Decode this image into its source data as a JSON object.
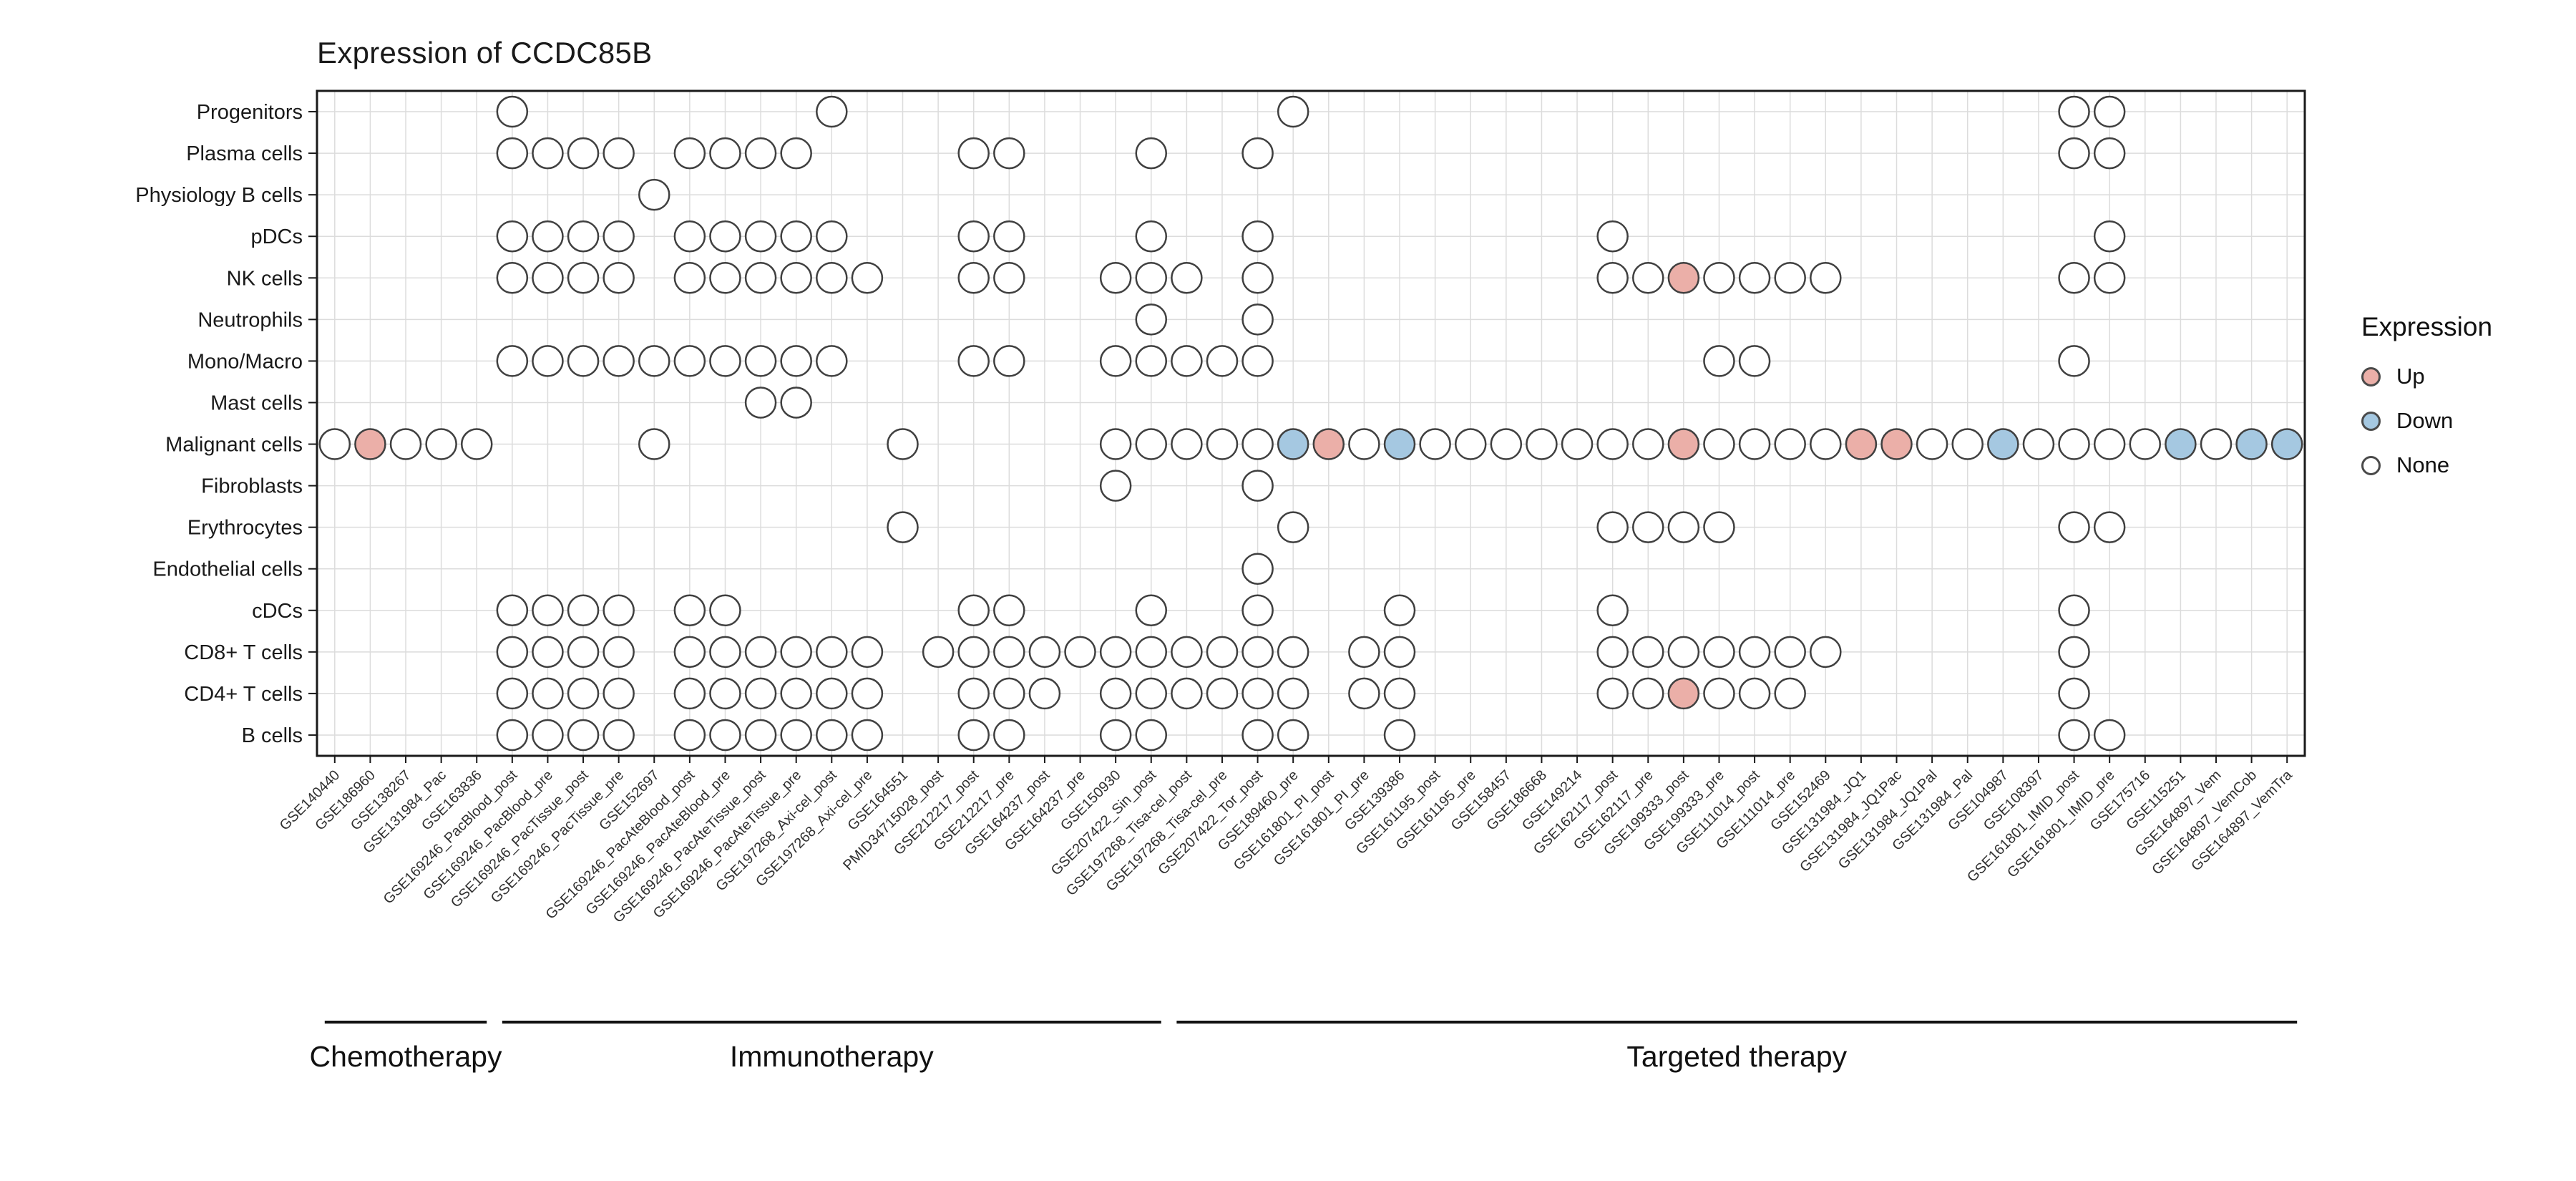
{
  "title": "Expression of CCDC85B",
  "legend": {
    "title": "Expression",
    "items": [
      {
        "label": "Up",
        "color": "#EBAFA8"
      },
      {
        "label": "Down",
        "color": "#A5C8E1"
      },
      {
        "label": "None",
        "color": "#FFFFFF"
      }
    ]
  },
  "chart_data": {
    "type": "heatmap",
    "subtype": "dot-matrix",
    "title": "Expression of CCDC85B",
    "legend_title": "Expression",
    "legend_position": "right",
    "grid": true,
    "rows": [
      "Progenitors",
      "Plasma cells",
      "Physiology B cells",
      "pDCs",
      "NK cells",
      "Neutrophils",
      "Mono/Macro",
      "Mast cells",
      "Malignant cells",
      "Fibroblasts",
      "Erythrocytes",
      "Endothelial cells",
      "cDCs",
      "CD8+ T cells",
      "CD4+ T cells",
      "B cells"
    ],
    "columns": [
      "GSE140440",
      "GSE186960",
      "GSE138267",
      "GSE131984_Pac",
      "GSE163836",
      "GSE169246_PacBlood_post",
      "GSE169246_PacBlood_pre",
      "GSE169246_PacTissue_post",
      "GSE169246_PacTissue_pre",
      "GSE152697",
      "GSE169246_PacAteBlood_post",
      "GSE169246_PacAteBlood_pre",
      "GSE169246_PacAteTissue_post",
      "GSE169246_PacAteTissue_pre",
      "GSE197268_Axi-cel_post",
      "GSE197268_Axi-cel_pre",
      "GSE164551",
      "PMID34715028_post",
      "GSE212217_post",
      "GSE212217_pre",
      "GSE164237_post",
      "GSE164237_pre",
      "GSE150930",
      "GSE207422_Sin_post",
      "GSE197268_Tisa-cel_post",
      "GSE197268_Tisa-cel_pre",
      "GSE207422_Tor_post",
      "GSE189460_pre",
      "GSE161801_PI_post",
      "GSE161801_PI_pre",
      "GSE139386",
      "GSE161195_post",
      "GSE161195_pre",
      "GSE158457",
      "GSE186668",
      "GSE149214",
      "GSE162117_post",
      "GSE162117_pre",
      "GSE199333_post",
      "GSE199333_pre",
      "GSE111014_post",
      "GSE111014_pre",
      "GSE152469",
      "GSE131984_JQ1",
      "GSE131984_JQ1Pac",
      "GSE131984_JQ1Pal",
      "GSE131984_Pal",
      "GSE104987",
      "GSE108397",
      "GSE161801_IMID_post",
      "GSE161801_IMID_pre",
      "GSE175716",
      "GSE115251",
      "GSE164897_Vem",
      "GSE164897_VemCob",
      "GSE164897_VemTra"
    ],
    "groups": [
      {
        "label": "Chemotherapy",
        "start": 1,
        "end": 5
      },
      {
        "label": "Immunotherapy",
        "start": 6,
        "end": 24
      },
      {
        "label": "Targeted therapy",
        "start": 25,
        "end": 56
      }
    ],
    "states": {
      "n": "None",
      "u": "Up",
      "d": "Down"
    },
    "state_colors": {
      "n": "#FFFFFF",
      "u": "#EBAFA8",
      "d": "#A5C8E1"
    },
    "style": {
      "grid": "#DCDCDC",
      "border": "#1A1A1A",
      "dot_stroke": "#404040",
      "text": "#1A1A1A",
      "tick_text": "#303030"
    },
    "dots": {
      "Progenitors": [
        [
          6,
          "n"
        ],
        [
          15,
          "n"
        ],
        [
          28,
          "n"
        ],
        [
          50,
          "n"
        ],
        [
          51,
          "n"
        ]
      ],
      "Plasma cells": [
        [
          6,
          "n"
        ],
        [
          7,
          "n"
        ],
        [
          8,
          "n"
        ],
        [
          9,
          "n"
        ],
        [
          11,
          "n"
        ],
        [
          12,
          "n"
        ],
        [
          13,
          "n"
        ],
        [
          14,
          "n"
        ],
        [
          19,
          "n"
        ],
        [
          20,
          "n"
        ],
        [
          24,
          "n"
        ],
        [
          27,
          "n"
        ],
        [
          50,
          "n"
        ],
        [
          51,
          "n"
        ]
      ],
      "Physiology B cells": [
        [
          10,
          "n"
        ]
      ],
      "pDCs": [
        [
          6,
          "n"
        ],
        [
          7,
          "n"
        ],
        [
          8,
          "n"
        ],
        [
          9,
          "n"
        ],
        [
          11,
          "n"
        ],
        [
          12,
          "n"
        ],
        [
          13,
          "n"
        ],
        [
          14,
          "n"
        ],
        [
          15,
          "n"
        ],
        [
          19,
          "n"
        ],
        [
          20,
          "n"
        ],
        [
          24,
          "n"
        ],
        [
          27,
          "n"
        ],
        [
          37,
          "n"
        ],
        [
          51,
          "n"
        ]
      ],
      "NK cells": [
        [
          6,
          "n"
        ],
        [
          7,
          "n"
        ],
        [
          8,
          "n"
        ],
        [
          9,
          "n"
        ],
        [
          11,
          "n"
        ],
        [
          12,
          "n"
        ],
        [
          13,
          "n"
        ],
        [
          14,
          "n"
        ],
        [
          15,
          "n"
        ],
        [
          16,
          "n"
        ],
        [
          19,
          "n"
        ],
        [
          20,
          "n"
        ],
        [
          23,
          "n"
        ],
        [
          24,
          "n"
        ],
        [
          25,
          "n"
        ],
        [
          27,
          "n"
        ],
        [
          37,
          "n"
        ],
        [
          38,
          "n"
        ],
        [
          39,
          "u"
        ],
        [
          40,
          "n"
        ],
        [
          41,
          "n"
        ],
        [
          42,
          "n"
        ],
        [
          43,
          "n"
        ],
        [
          50,
          "n"
        ],
        [
          51,
          "n"
        ]
      ],
      "Neutrophils": [
        [
          24,
          "n"
        ],
        [
          27,
          "n"
        ]
      ],
      "Mono/Macro": [
        [
          6,
          "n"
        ],
        [
          7,
          "n"
        ],
        [
          8,
          "n"
        ],
        [
          9,
          "n"
        ],
        [
          10,
          "n"
        ],
        [
          11,
          "n"
        ],
        [
          12,
          "n"
        ],
        [
          13,
          "n"
        ],
        [
          14,
          "n"
        ],
        [
          15,
          "n"
        ],
        [
          19,
          "n"
        ],
        [
          20,
          "n"
        ],
        [
          23,
          "n"
        ],
        [
          24,
          "n"
        ],
        [
          25,
          "n"
        ],
        [
          26,
          "n"
        ],
        [
          27,
          "n"
        ],
        [
          40,
          "n"
        ],
        [
          41,
          "n"
        ],
        [
          50,
          "n"
        ]
      ],
      "Mast cells": [
        [
          13,
          "n"
        ],
        [
          14,
          "n"
        ]
      ],
      "Malignant cells": [
        [
          1,
          "n"
        ],
        [
          2,
          "u"
        ],
        [
          3,
          "n"
        ],
        [
          4,
          "n"
        ],
        [
          5,
          "n"
        ],
        [
          10,
          "n"
        ],
        [
          17,
          "n"
        ],
        [
          23,
          "n"
        ],
        [
          24,
          "n"
        ],
        [
          25,
          "n"
        ],
        [
          26,
          "n"
        ],
        [
          27,
          "n"
        ],
        [
          28,
          "d"
        ],
        [
          29,
          "u"
        ],
        [
          30,
          "n"
        ],
        [
          31,
          "d"
        ],
        [
          32,
          "n"
        ],
        [
          33,
          "n"
        ],
        [
          34,
          "n"
        ],
        [
          35,
          "n"
        ],
        [
          36,
          "n"
        ],
        [
          37,
          "n"
        ],
        [
          38,
          "n"
        ],
        [
          39,
          "u"
        ],
        [
          40,
          "n"
        ],
        [
          41,
          "n"
        ],
        [
          42,
          "n"
        ],
        [
          43,
          "n"
        ],
        [
          44,
          "u"
        ],
        [
          45,
          "u"
        ],
        [
          46,
          "n"
        ],
        [
          47,
          "n"
        ],
        [
          48,
          "d"
        ],
        [
          49,
          "n"
        ],
        [
          50,
          "n"
        ],
        [
          51,
          "n"
        ],
        [
          52,
          "n"
        ],
        [
          53,
          "d"
        ],
        [
          54,
          "n"
        ],
        [
          55,
          "d"
        ],
        [
          56,
          "d"
        ]
      ],
      "Fibroblasts": [
        [
          23,
          "n"
        ],
        [
          27,
          "n"
        ]
      ],
      "Erythrocytes": [
        [
          17,
          "n"
        ],
        [
          28,
          "n"
        ],
        [
          37,
          "n"
        ],
        [
          38,
          "n"
        ],
        [
          39,
          "n"
        ],
        [
          40,
          "n"
        ],
        [
          50,
          "n"
        ],
        [
          51,
          "n"
        ]
      ],
      "Endothelial cells": [
        [
          27,
          "n"
        ]
      ],
      "cDCs": [
        [
          6,
          "n"
        ],
        [
          7,
          "n"
        ],
        [
          8,
          "n"
        ],
        [
          9,
          "n"
        ],
        [
          11,
          "n"
        ],
        [
          12,
          "n"
        ],
        [
          19,
          "n"
        ],
        [
          20,
          "n"
        ],
        [
          24,
          "n"
        ],
        [
          27,
          "n"
        ],
        [
          31,
          "n"
        ],
        [
          37,
          "n"
        ],
        [
          50,
          "n"
        ]
      ],
      "CD8+ T cells": [
        [
          6,
          "n"
        ],
        [
          7,
          "n"
        ],
        [
          8,
          "n"
        ],
        [
          9,
          "n"
        ],
        [
          11,
          "n"
        ],
        [
          12,
          "n"
        ],
        [
          13,
          "n"
        ],
        [
          14,
          "n"
        ],
        [
          15,
          "n"
        ],
        [
          16,
          "n"
        ],
        [
          18,
          "n"
        ],
        [
          19,
          "n"
        ],
        [
          20,
          "n"
        ],
        [
          21,
          "n"
        ],
        [
          22,
          "n"
        ],
        [
          23,
          "n"
        ],
        [
          24,
          "n"
        ],
        [
          25,
          "n"
        ],
        [
          26,
          "n"
        ],
        [
          27,
          "n"
        ],
        [
          28,
          "n"
        ],
        [
          30,
          "n"
        ],
        [
          31,
          "n"
        ],
        [
          37,
          "n"
        ],
        [
          38,
          "n"
        ],
        [
          39,
          "n"
        ],
        [
          40,
          "n"
        ],
        [
          41,
          "n"
        ],
        [
          42,
          "n"
        ],
        [
          43,
          "n"
        ],
        [
          50,
          "n"
        ]
      ],
      "CD4+ T cells": [
        [
          6,
          "n"
        ],
        [
          7,
          "n"
        ],
        [
          8,
          "n"
        ],
        [
          9,
          "n"
        ],
        [
          11,
          "n"
        ],
        [
          12,
          "n"
        ],
        [
          13,
          "n"
        ],
        [
          14,
          "n"
        ],
        [
          15,
          "n"
        ],
        [
          16,
          "n"
        ],
        [
          19,
          "n"
        ],
        [
          20,
          "n"
        ],
        [
          21,
          "n"
        ],
        [
          23,
          "n"
        ],
        [
          24,
          "n"
        ],
        [
          25,
          "n"
        ],
        [
          26,
          "n"
        ],
        [
          27,
          "n"
        ],
        [
          28,
          "n"
        ],
        [
          30,
          "n"
        ],
        [
          31,
          "n"
        ],
        [
          37,
          "n"
        ],
        [
          38,
          "n"
        ],
        [
          39,
          "u"
        ],
        [
          40,
          "n"
        ],
        [
          41,
          "n"
        ],
        [
          42,
          "n"
        ],
        [
          50,
          "n"
        ]
      ],
      "B cells": [
        [
          6,
          "n"
        ],
        [
          7,
          "n"
        ],
        [
          8,
          "n"
        ],
        [
          9,
          "n"
        ],
        [
          11,
          "n"
        ],
        [
          12,
          "n"
        ],
        [
          13,
          "n"
        ],
        [
          14,
          "n"
        ],
        [
          15,
          "n"
        ],
        [
          16,
          "n"
        ],
        [
          19,
          "n"
        ],
        [
          20,
          "n"
        ],
        [
          23,
          "n"
        ],
        [
          24,
          "n"
        ],
        [
          27,
          "n"
        ],
        [
          28,
          "n"
        ],
        [
          31,
          "n"
        ],
        [
          50,
          "n"
        ],
        [
          51,
          "n"
        ]
      ]
    }
  }
}
